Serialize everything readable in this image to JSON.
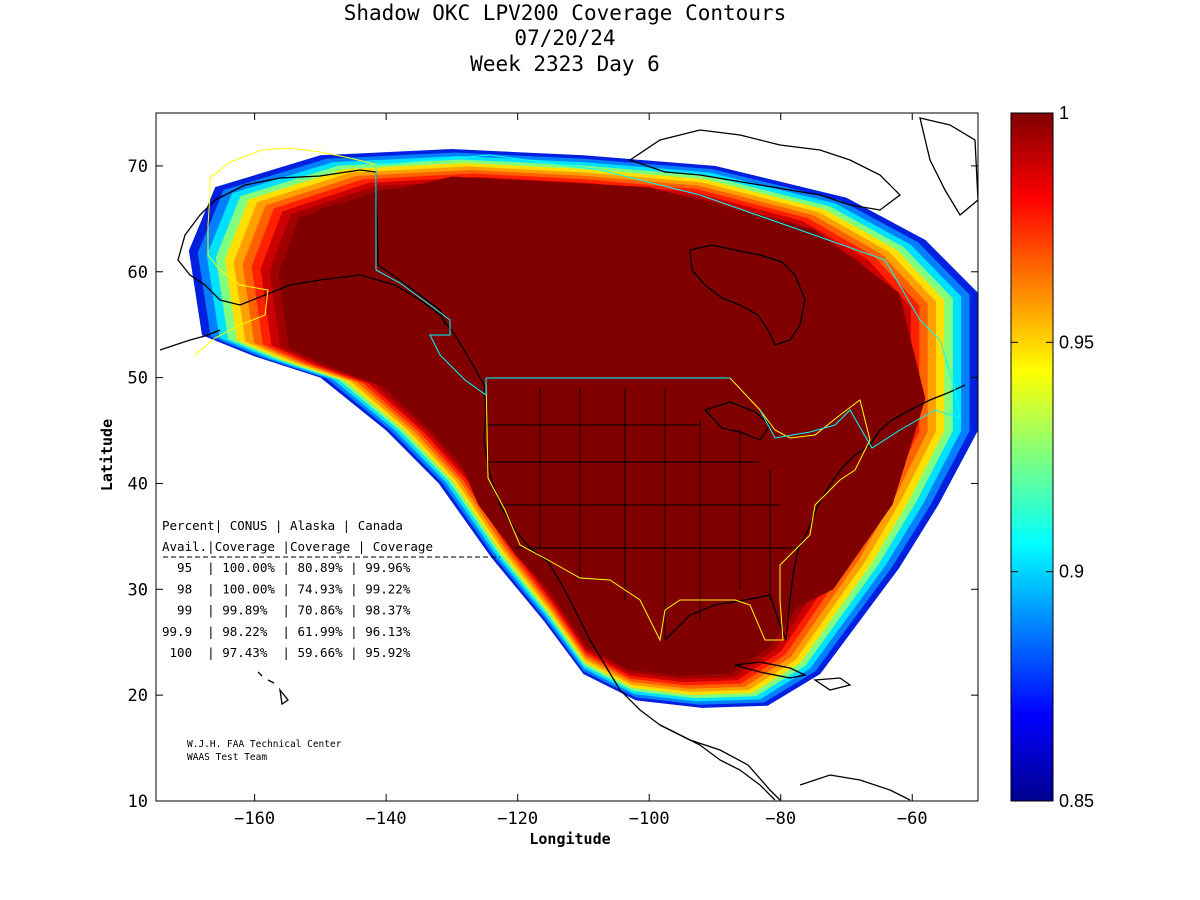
{
  "chart_data": {
    "type": "heatmap",
    "title": "Shadow OKC LPV200 Coverage Contours",
    "subtitle_date": "07/20/24",
    "subtitle_week": "Week 2323 Day 6",
    "xlabel": "Longitude",
    "ylabel": "Latitude",
    "xlim": [
      -175,
      -50
    ],
    "ylim": [
      10,
      75
    ],
    "x_ticks": [
      -160,
      -140,
      -120,
      -100,
      -80,
      -60
    ],
    "y_ticks": [
      10,
      20,
      30,
      40,
      50,
      60,
      70
    ],
    "colorbar": {
      "range": [
        0.85,
        1
      ],
      "ticks": [
        1,
        0.95,
        0.9,
        0.85
      ],
      "tick_labels": [
        "1",
        "0.95",
        "0.9",
        "0.85"
      ],
      "colormap": "jet"
    },
    "coverage_core_color": "#800000",
    "coverage_levels": [
      {
        "level": 1.0,
        "color": "#800000"
      },
      {
        "level": 0.995,
        "color": "#a00000"
      },
      {
        "level": 0.99,
        "color": "#cc0000"
      },
      {
        "level": 0.98,
        "color": "#ff2000"
      },
      {
        "level": 0.97,
        "color": "#ff6000"
      },
      {
        "level": 0.96,
        "color": "#ffa000"
      },
      {
        "level": 0.95,
        "color": "#ffe000"
      },
      {
        "level": 0.93,
        "color": "#80ff80"
      },
      {
        "level": 0.91,
        "color": "#00e0ff"
      },
      {
        "level": 0.89,
        "color": "#0080ff"
      },
      {
        "level": 0.87,
        "color": "#0020e0"
      }
    ],
    "table": {
      "header1": [
        "Percent",
        "CONUS",
        "Alaska",
        "Canada"
      ],
      "header2": [
        "Avail.",
        "Coverage",
        "Coverage",
        "Coverage"
      ],
      "rows": [
        [
          "95",
          "100.00%",
          "80.89%",
          "99.96%"
        ],
        [
          "98",
          "100.00%",
          "74.93%",
          "99.22%"
        ],
        [
          "99",
          "99.89%",
          "70.86%",
          "98.37%"
        ],
        [
          "99.9",
          "98.22%",
          "61.99%",
          "96.13%"
        ],
        [
          "100",
          "97.43%",
          "59.66%",
          "95.92%"
        ]
      ]
    },
    "credit_line1": "W.J.H. FAA Technical Center",
    "credit_line2": "WAAS Test Team"
  },
  "colors": {
    "fir_boundary_alaska": "#ffff00",
    "fir_boundary_canada": "#00ffff"
  }
}
